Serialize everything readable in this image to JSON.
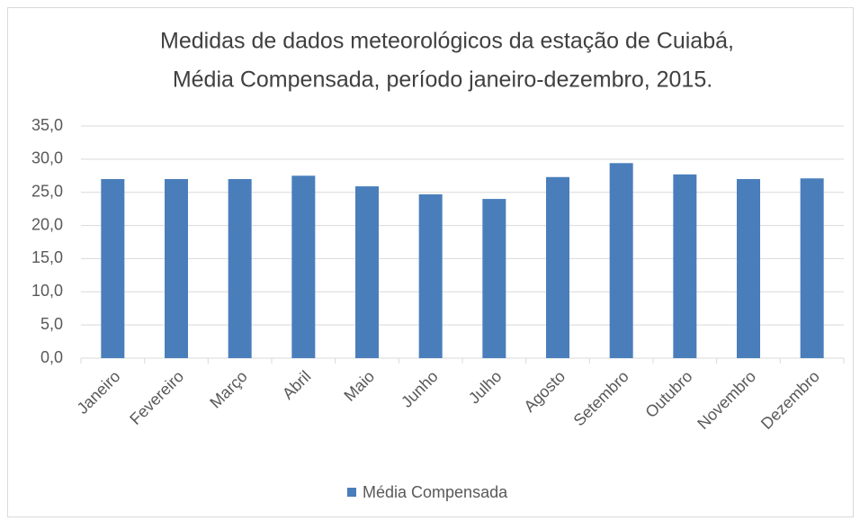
{
  "chart_data": {
    "type": "bar",
    "title": [
      "Medidas de dados meteorológicos da estação de Cuiabá,",
      "Média Compensada, período janeiro-dezembro,  2015."
    ],
    "categories": [
      "Janeiro",
      "Fevereiro",
      "Março",
      "Abril",
      "Maio",
      "Junho",
      "Julho",
      "Agosto",
      "Setembro",
      "Outubro",
      "Novembro",
      "Dezembro"
    ],
    "series": [
      {
        "name": "Média Compensada",
        "color": "#4a7ebb",
        "values": [
          27.0,
          27.0,
          27.0,
          27.5,
          25.9,
          24.7,
          24.0,
          27.3,
          29.4,
          27.7,
          27.0,
          27.1
        ]
      }
    ],
    "ylim": [
      0,
      35
    ],
    "yticks": [
      {
        "value": 0,
        "label": "0,0"
      },
      {
        "value": 5,
        "label": "5,0"
      },
      {
        "value": 10,
        "label": "10,0"
      },
      {
        "value": 15,
        "label": "15,0"
      },
      {
        "value": 20,
        "label": "20,0"
      },
      {
        "value": 25,
        "label": "25,0"
      },
      {
        "value": 30,
        "label": "30,0"
      },
      {
        "value": 35,
        "label": "35,0"
      }
    ],
    "grid": true,
    "legend": "bottom"
  }
}
